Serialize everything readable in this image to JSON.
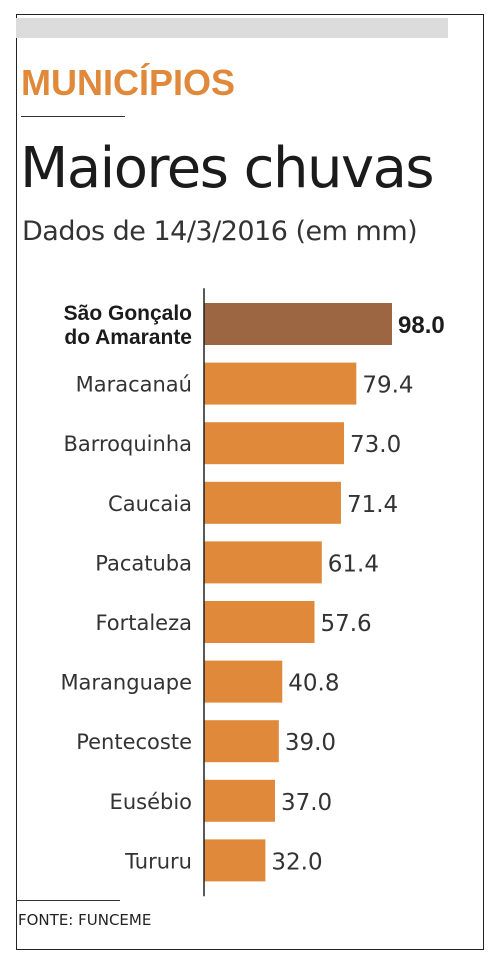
{
  "header": {
    "kicker": "MUNICÍPIOS",
    "title": "Maiores chuvas",
    "subtitle": "Dados de 14/3/2016 (em mm)"
  },
  "footer": {
    "source": "FONTE: FUNCEME"
  },
  "colors": {
    "kicker": "#e0893a",
    "bar": "#e0893a",
    "highlight_bar": "#9c6643",
    "axis": "#222222"
  },
  "chart_data": {
    "type": "bar",
    "orientation": "horizontal",
    "categories": [
      "São Gonçalo do Amarante",
      "Maracanaú",
      "Barroquinha",
      "Caucaia",
      "Pacatuba",
      "Fortaleza",
      "Maranguape",
      "Pentecoste",
      "Eusébio",
      "Tururu"
    ],
    "values": [
      98.0,
      79.4,
      73.0,
      71.4,
      61.4,
      57.6,
      40.8,
      39.0,
      37.0,
      32.0
    ],
    "value_labels": [
      "98.0",
      "79.4",
      "73.0",
      "71.4",
      "61.4",
      "57.6",
      "40.8",
      "39.0",
      "37.0",
      "32.0"
    ],
    "highlight_index": 0,
    "title": "Maiores chuvas",
    "subtitle": "Dados de 14/3/2016 (em mm)",
    "xlabel": "",
    "ylabel": "",
    "xlim": [
      0,
      98.0
    ],
    "grid": false,
    "legend": "none"
  }
}
